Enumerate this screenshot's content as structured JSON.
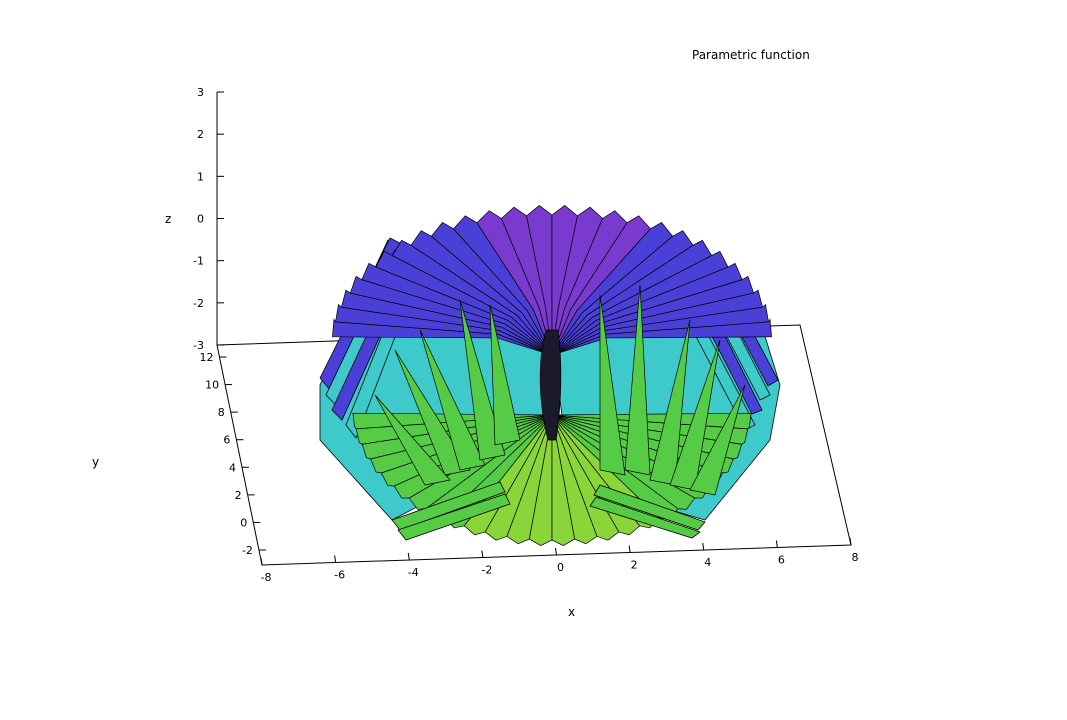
{
  "chart_data": {
    "type": "surface3d",
    "title": "Parametric function",
    "xlabel": "x",
    "ylabel": "y",
    "zlabel": "z",
    "xlim": [
      -8,
      8
    ],
    "ylim": [
      -2,
      12
    ],
    "zlim": [
      -3,
      3
    ],
    "x_ticks": [
      "-8",
      "-6",
      "-4",
      "-2",
      "0",
      "2",
      "4",
      "6",
      "8"
    ],
    "y_ticks": [
      "-2",
      "0",
      "2",
      "4",
      "6",
      "8",
      "10",
      "12"
    ],
    "z_ticks": [
      "-3",
      "-2",
      "-1",
      "0",
      "1",
      "2",
      "3"
    ],
    "surface": "parametric flared tube (hyperboloid-like), pinched near x = 0",
    "colors": {
      "top_layer": "#4a40d8",
      "top_highlight": "#7a3ad0",
      "middle_layer": "#3ecacb",
      "bottom_layer": "#56cc46",
      "bottom_highlight": "#8ad63a",
      "edge": "#000000"
    }
  }
}
